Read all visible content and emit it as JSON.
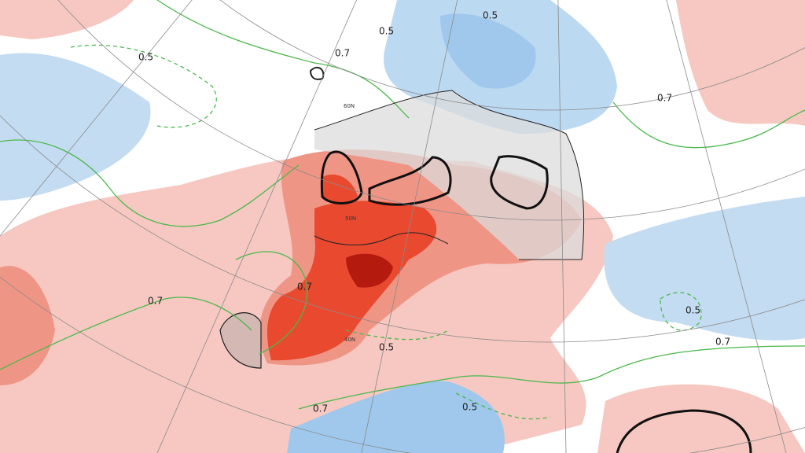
{
  "map": {
    "contour_labels": [
      "0.5",
      "0.7",
      "0.5",
      "0.5",
      "0.7",
      "0.7",
      "0.7",
      "0.5",
      "0.7",
      "0.5",
      "0.7",
      "0.5"
    ],
    "latitude_labels": [
      "60N",
      "50N",
      "40N"
    ]
  }
}
